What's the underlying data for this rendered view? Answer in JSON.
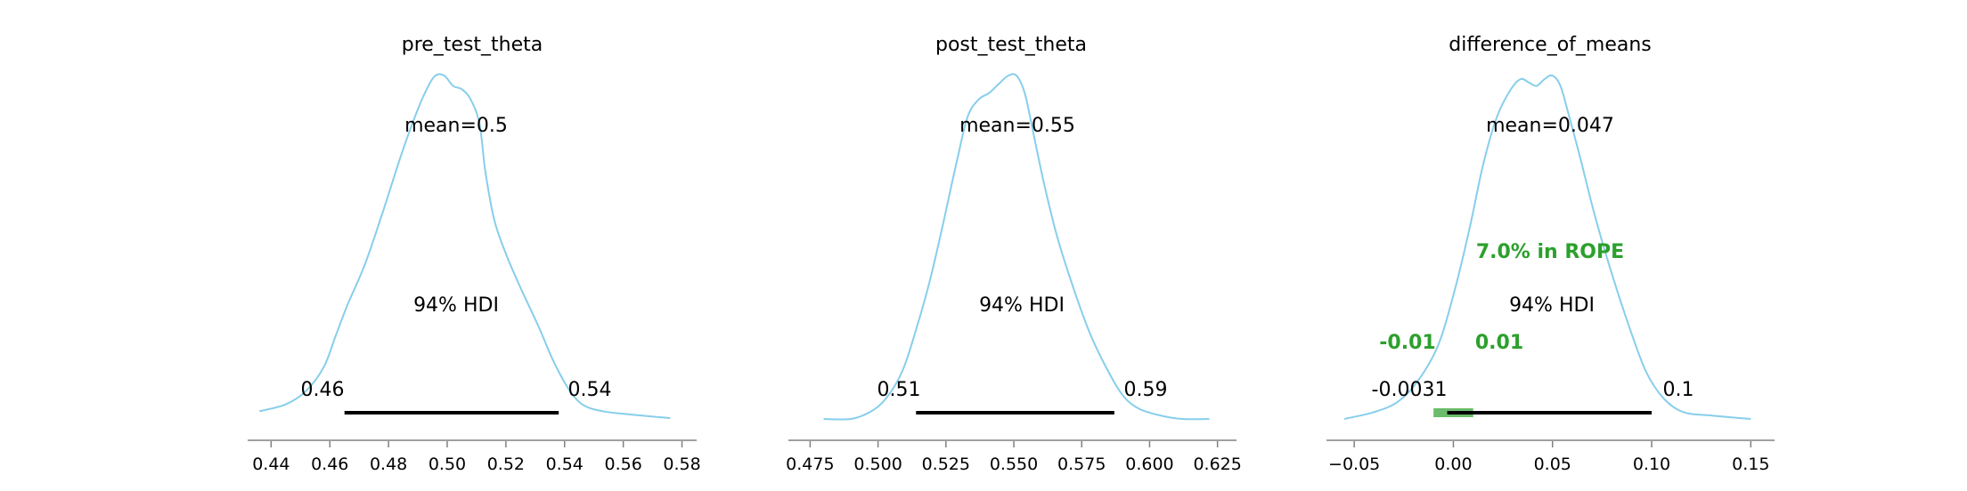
{
  "chart_data": [
    {
      "type": "line",
      "title": "pre_test_theta",
      "mean_label": "mean=0.5",
      "hdi_label": "94% HDI",
      "hdi": [
        0.465,
        0.538
      ],
      "hdi_low_label": "0.46",
      "hdi_high_label": "0.54",
      "xlim": [
        0.432,
        0.585
      ],
      "xticks": [
        0.44,
        0.46,
        0.48,
        0.5,
        0.52,
        0.54,
        0.56,
        0.58
      ],
      "xtick_labels": [
        "0.44",
        "0.46",
        "0.48",
        "0.50",
        "0.52",
        "0.54",
        "0.56",
        "0.58"
      ],
      "density_x": [
        0.436,
        0.445,
        0.452,
        0.458,
        0.462,
        0.466,
        0.472,
        0.478,
        0.484,
        0.489,
        0.493,
        0.496,
        0.499,
        0.502,
        0.505,
        0.508,
        0.511,
        0.513,
        0.516,
        0.52,
        0.525,
        0.531,
        0.536,
        0.541,
        0.546,
        0.553,
        0.563,
        0.576
      ],
      "density_y": [
        0.02,
        0.04,
        0.08,
        0.15,
        0.24,
        0.33,
        0.45,
        0.6,
        0.76,
        0.88,
        0.96,
        1.0,
        1.0,
        0.97,
        0.96,
        0.93,
        0.86,
        0.72,
        0.58,
        0.48,
        0.38,
        0.27,
        0.17,
        0.09,
        0.04,
        0.02,
        0.01,
        0.0
      ]
    },
    {
      "type": "line",
      "title": "post_test_theta",
      "mean_label": "mean=0.55",
      "hdi_label": "94% HDI",
      "hdi": [
        0.514,
        0.587
      ],
      "hdi_low_label": "0.51",
      "hdi_high_label": "0.59",
      "xlim": [
        0.467,
        0.632
      ],
      "xticks": [
        0.475,
        0.5,
        0.525,
        0.55,
        0.575,
        0.6,
        0.625
      ],
      "xtick_labels": [
        "0.475",
        "0.500",
        "0.525",
        "0.550",
        "0.575",
        "0.600",
        "0.625"
      ],
      "density_x": [
        0.48,
        0.49,
        0.497,
        0.503,
        0.509,
        0.514,
        0.519,
        0.524,
        0.529,
        0.533,
        0.537,
        0.541,
        0.545,
        0.548,
        0.551,
        0.554,
        0.557,
        0.561,
        0.566,
        0.572,
        0.578,
        0.584,
        0.59,
        0.596,
        0.604,
        0.612,
        0.622
      ],
      "density_y": [
        0.0,
        0.0,
        0.02,
        0.06,
        0.14,
        0.26,
        0.4,
        0.57,
        0.75,
        0.88,
        0.93,
        0.95,
        0.98,
        1.0,
        1.0,
        0.95,
        0.84,
        0.69,
        0.53,
        0.38,
        0.25,
        0.15,
        0.07,
        0.03,
        0.01,
        0.0,
        0.0
      ]
    },
    {
      "type": "line",
      "title": "difference_of_means",
      "mean_label": "mean=0.047",
      "hdi_label": "94% HDI",
      "hdi": [
        -0.0031,
        0.1
      ],
      "hdi_low_label": "-0.0031",
      "hdi_high_label": "0.1",
      "rope": [
        -0.01,
        0.01
      ],
      "rope_low_label": "-0.01",
      "rope_high_label": "0.01",
      "rope_pct_label": "7.0% in ROPE",
      "rope_color": "#2ca02c",
      "xlim": [
        -0.064,
        0.162
      ],
      "xticks": [
        -0.05,
        0.0,
        0.05,
        0.1,
        0.15
      ],
      "xtick_labels": [
        "−0.05",
        "0.00",
        "0.05",
        "0.10",
        "0.15"
      ],
      "density_x": [
        -0.055,
        -0.04,
        -0.028,
        -0.018,
        -0.008,
        0.0,
        0.008,
        0.015,
        0.022,
        0.029,
        0.034,
        0.038,
        0.042,
        0.046,
        0.05,
        0.054,
        0.058,
        0.064,
        0.071,
        0.079,
        0.088,
        0.097,
        0.106,
        0.116,
        0.13,
        0.15
      ],
      "density_y": [
        0.0,
        0.02,
        0.05,
        0.11,
        0.21,
        0.36,
        0.55,
        0.74,
        0.88,
        0.96,
        0.99,
        0.98,
        0.97,
        0.99,
        1.0,
        0.97,
        0.89,
        0.76,
        0.6,
        0.44,
        0.28,
        0.14,
        0.06,
        0.02,
        0.01,
        0.0
      ]
    }
  ],
  "colors": {
    "kde": "#87ceeb",
    "hdi_bar": "#000000",
    "axis": "#808080",
    "rope": "#2ca02c"
  }
}
